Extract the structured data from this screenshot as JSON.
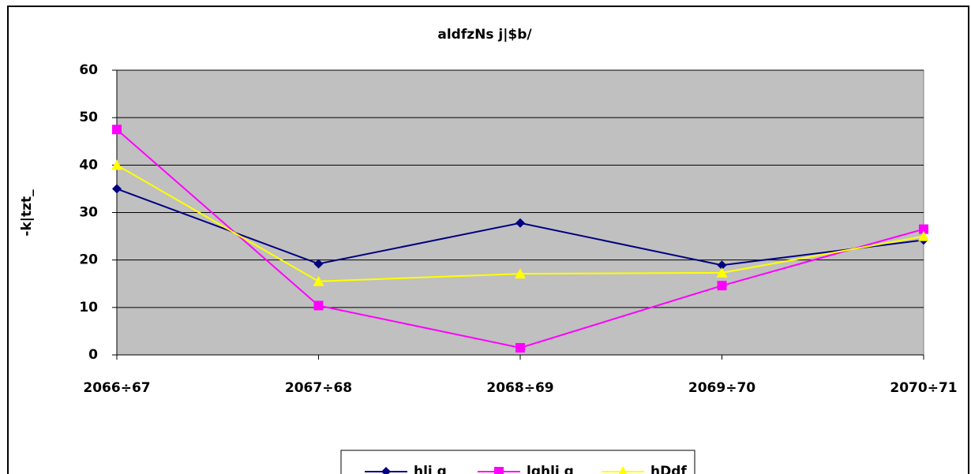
{
  "chart_data": {
    "type": "line",
    "title": "aldfzNs j|$b/",
    "y_label": "-k|tzt_",
    "categories": [
      "2066÷67",
      "2067÷68",
      "2068÷69",
      "2069÷70",
      "2070÷71"
    ],
    "series": [
      {
        "name": "hlj g",
        "color": "#000080",
        "marker": "diamond",
        "values": [
          35,
          19.2,
          27.8,
          18.9,
          24.2
        ]
      },
      {
        "name": "lghlj g",
        "color": "#ff00ff",
        "marker": "square",
        "values": [
          47.5,
          10.4,
          1.5,
          14.6,
          26.5
        ]
      },
      {
        "name": "hDdf",
        "color": "#ffff00",
        "marker": "triangle",
        "values": [
          40,
          15.5,
          17.1,
          17.3,
          25
        ]
      }
    ],
    "ylim": [
      0,
      60
    ],
    "yticks": [
      0,
      10,
      20,
      30,
      40,
      50,
      60
    ],
    "grid": true,
    "legend": "bottom"
  }
}
